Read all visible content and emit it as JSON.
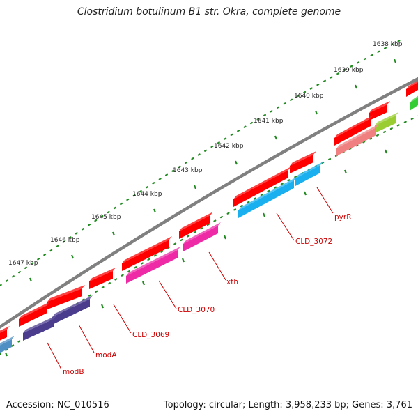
{
  "title": "Clostridium botulinum B1 str. Okra, complete genome",
  "footer": {
    "accession": "Accession: NC_010516",
    "summary": "Topology: circular; Length: 3,958,233 bp; Genes: 3,761"
  },
  "colors": {
    "backbone": "#808080",
    "tick_dots": "#228b22",
    "label_text": "#cc0000",
    "gene_red": "#ff0000",
    "gene_blue": "#1ab0f0",
    "gene_magenta": "#ee2aa6",
    "gene_purple": "#4b3c8e",
    "gene_lightblue": "#4f8fc4",
    "gene_salmon": "#f08080",
    "gene_lime": "#9acd32",
    "gene_green": "#33cc33"
  },
  "kbp_ticks": [
    "1638 kbp",
    "1639 kbp",
    "1640 kbp",
    "1641 kbp",
    "1642 kbp",
    "1643 kbp",
    "1644 kbp",
    "1645 kbp",
    "1646 kbp",
    "1647 kbp"
  ],
  "gene_labels": [
    "pyrR",
    "CLD_3072",
    "xth",
    "CLD_3070",
    "CLD_3069",
    "modA",
    "modB"
  ]
}
